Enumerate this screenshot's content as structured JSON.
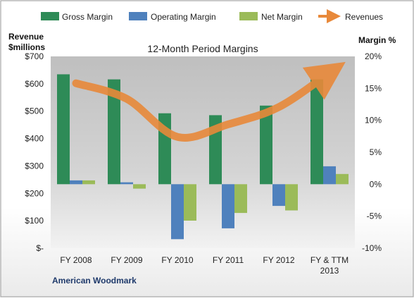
{
  "chart_data": {
    "type": "bar",
    "title": "12-Month Period Margins",
    "company": "American Woodmark",
    "categories": [
      "FY 2008",
      "FY 2009",
      "FY 2010",
      "FY 2011",
      "FY 2012",
      "FY & TTM 2013"
    ],
    "left_axis": {
      "label_line1": "Revenue",
      "label_line2": "$millions",
      "ylim": [
        0,
        700
      ],
      "ticks": [
        0,
        100,
        200,
        300,
        400,
        500,
        600,
        700
      ],
      "tick_labels": [
        "$-",
        "$100",
        "$200",
        "$300",
        "$400",
        "$500",
        "$600",
        "$700"
      ]
    },
    "right_axis": {
      "label": "Margin %",
      "ylim": [
        -10,
        20
      ],
      "ticks": [
        -10,
        -5,
        0,
        5,
        10,
        15,
        20
      ],
      "tick_labels": [
        "-10%",
        "-5%",
        "0%",
        "5%",
        "10%",
        "15%",
        "20%"
      ]
    },
    "series": [
      {
        "name": "Gross Margin",
        "kind": "bar",
        "axis": "right",
        "color": "#2e8b57",
        "values": [
          17.2,
          16.4,
          11.1,
          10.8,
          12.3,
          16.4
        ]
      },
      {
        "name": "Operating Margin",
        "kind": "bar",
        "axis": "right",
        "color": "#4f81bd",
        "values": [
          0.6,
          0.3,
          -8.6,
          -6.9,
          -3.4,
          2.8
        ]
      },
      {
        "name": "Net Margin",
        "kind": "bar",
        "axis": "right",
        "color": "#9bbb59",
        "values": [
          0.6,
          -0.7,
          -5.7,
          -4.5,
          -4.1,
          1.6
        ]
      },
      {
        "name": "Revenues",
        "kind": "line",
        "axis": "left",
        "color": "#e8893a",
        "values": [
          602,
          545,
          406,
          452,
          515,
          640
        ]
      }
    ],
    "legend_position": "top",
    "grid": false,
    "colors": {
      "plot_background": "#c8c8c8",
      "page_background": "#ffffff",
      "border": "#a6a6a6"
    }
  }
}
